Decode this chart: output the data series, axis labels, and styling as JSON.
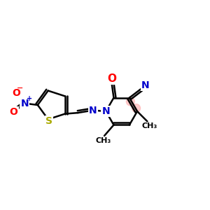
{
  "background_color": "#ffffff",
  "figsize": [
    3.0,
    3.0
  ],
  "dpi": 100,
  "bond_color": "#000000",
  "bond_width": 1.8,
  "atom_colors": {
    "N": "#0000cc",
    "O": "#ff0000",
    "S": "#aaaa00",
    "C": "#000000"
  },
  "font_size": 10,
  "font_size_small": 8,
  "font_size_charge": 7,
  "xlim": [
    0,
    10
  ],
  "ylim": [
    2,
    8
  ]
}
